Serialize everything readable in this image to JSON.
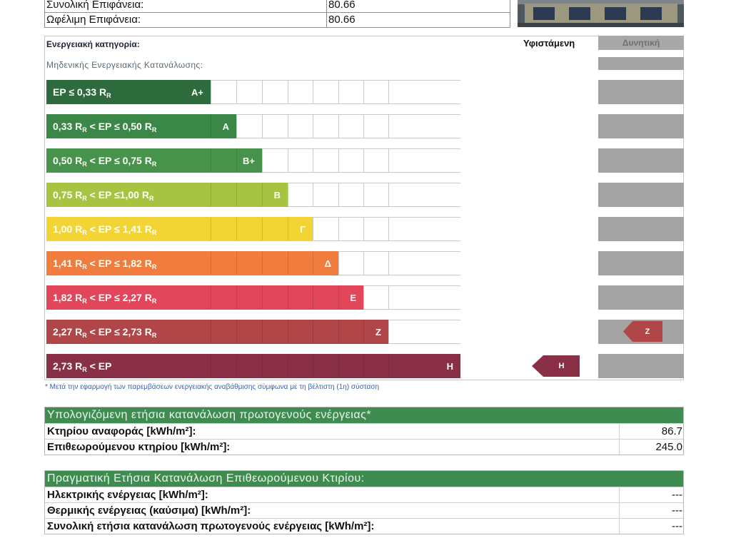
{
  "surface_table": {
    "rows": [
      {
        "label": "Συνολική Επιφάνεια:",
        "value": "80.66"
      },
      {
        "label": "Ωφέλιμη Επιφάνεια:",
        "value": "80.66"
      }
    ]
  },
  "building_photo": {
    "icon": "building-facade-photo"
  },
  "energy_rating": {
    "title": "Ενεργειακή κατηγορία:",
    "existing_header": "Υφιστάμενη",
    "potential_header": "Δυνητική",
    "zero_energy_label": "Μηδενικής Ενεργειακής Κατανάλωσης:",
    "classes": [
      {
        "letter": "Α+",
        "color": "#2d6b3c",
        "range": [
          {
            "text": "EP ≤ 0,33 R"
          },
          {
            "subscript": "R"
          }
        ]
      },
      {
        "letter": "Α",
        "color": "#3a8748",
        "range": [
          {
            "text": "0,33 R"
          },
          {
            "subscript": "R"
          },
          {
            "text": " < EP ≤ 0,50 R"
          },
          {
            "subscript": "R"
          }
        ]
      },
      {
        "letter": "Β+",
        "color": "#47934b",
        "range": [
          {
            "text": "0,50 R"
          },
          {
            "subscript": "R"
          },
          {
            "text": " < EP ≤ 0,75 R"
          },
          {
            "subscript": "R"
          }
        ]
      },
      {
        "letter": "Β",
        "color": "#a6c442",
        "range": [
          {
            "text": "0,75 R"
          },
          {
            "subscript": "R"
          },
          {
            "text": " < EP ≤1,00 R"
          },
          {
            "subscript": "R"
          }
        ]
      },
      {
        "letter": "Γ",
        "color": "#f2d434",
        "range": [
          {
            "text": "1,00 R"
          },
          {
            "subscript": "R"
          },
          {
            "text": " < EP ≤ 1,41 R"
          },
          {
            "subscript": "R"
          }
        ]
      },
      {
        "letter": "Δ",
        "color": "#f07c3e",
        "range": [
          {
            "text": "1,41 R"
          },
          {
            "subscript": "R"
          },
          {
            "text": " < EP ≤ 1,82 R"
          },
          {
            "subscript": "R"
          }
        ]
      },
      {
        "letter": "Ε",
        "color": "#e2465a",
        "range": [
          {
            "text": "1,82 R"
          },
          {
            "subscript": "R"
          },
          {
            "text": " < EP ≤ 2,27 R"
          },
          {
            "subscript": "R"
          }
        ]
      },
      {
        "letter": "Ζ",
        "color": "#b04648",
        "range": [
          {
            "text": "2,27 R"
          },
          {
            "subscript": "R"
          },
          {
            "text": " < EP ≤ 2,73 R"
          },
          {
            "subscript": "R"
          }
        ]
      },
      {
        "letter": "Η",
        "color": "#8a3046",
        "range": [
          {
            "text": "2,73 R"
          },
          {
            "subscript": "R"
          },
          {
            "text": " < EP"
          }
        ]
      }
    ],
    "existing_class": "Η",
    "potential_class": "Ζ",
    "footnote": "* Μετά την εφαρμογή των παρεμβάσεων ενεργειακής αναβάθμισης σύμφωνα με τη βέλτιστη (1η) σύσταση"
  },
  "calculated_consumption": {
    "header": "Υπολογιζόμενη ετήσια κατανάλωση πρωτογενούς ενέργειας*",
    "rows": [
      {
        "label": "Κτηρίου αναφοράς [kWh/m²]:",
        "value": "86.7"
      },
      {
        "label": "Επιθεωρούμενου κτηρίου [kWh/m²]:",
        "value": "245.0"
      }
    ]
  },
  "actual_consumption": {
    "header": "Πραγματική Ετήσια Κατανάλωση Επιθεωρούμενου Κτιρίου:",
    "rows": [
      {
        "label": "Ηλεκτρικής ενέργειας [kWh/m²]:",
        "value": "---"
      },
      {
        "label": "Θερμικής ενέργειας (καύσιμα) [kWh/m²]:",
        "value": "---"
      },
      {
        "label": "Συνολική ετήσια κατανάλωση πρωτογενούς ενέργειας [kWh/m²]:",
        "value": "---"
      }
    ]
  },
  "colors": {
    "section_header_green": "#3f8c50",
    "potential_column_gray": "#a3a3a3",
    "footnote_blue": "#3d62a6"
  }
}
